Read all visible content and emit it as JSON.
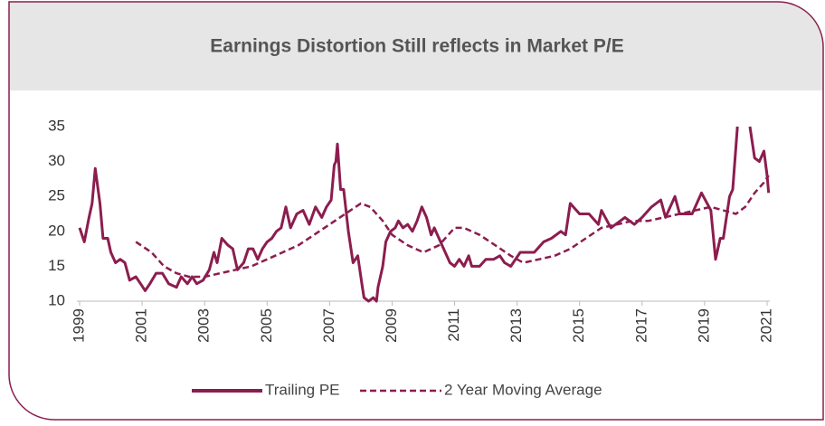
{
  "chart_data": {
    "type": "line",
    "title": "Earnings Distortion Still reflects in Market P/E",
    "xlim": [
      1999,
      2021
    ],
    "xticks": [
      1999,
      2001,
      2003,
      2005,
      2007,
      2009,
      2011,
      2013,
      2015,
      2017,
      2019,
      2021
    ],
    "ylim": [
      10,
      35
    ],
    "yticks": [
      10,
      15,
      20,
      25,
      30,
      35
    ],
    "grid": false,
    "legend": "bottom",
    "series": [
      {
        "name": "Trailing PE",
        "color": "#8c1d4f",
        "style": "solid",
        "x": [
          1999.0,
          1999.15,
          1999.3,
          1999.4,
          1999.5,
          1999.65,
          1999.75,
          1999.9,
          2000.0,
          2000.15,
          2000.3,
          2000.45,
          2000.6,
          2000.8,
          2000.95,
          2001.1,
          2001.25,
          2001.45,
          2001.65,
          2001.85,
          2002.1,
          2002.25,
          2002.45,
          2002.6,
          2002.75,
          2002.95,
          2003.15,
          2003.3,
          2003.4,
          2003.55,
          2003.75,
          2003.9,
          2004.05,
          2004.25,
          2004.4,
          2004.55,
          2004.7,
          2004.85,
          2005.0,
          2005.15,
          2005.3,
          2005.45,
          2005.6,
          2005.75,
          2005.95,
          2006.15,
          2006.35,
          2006.55,
          2006.75,
          2006.9,
          2007.05,
          2007.15,
          2007.2,
          2007.25,
          2007.35,
          2007.45,
          2007.6,
          2007.75,
          2007.9,
          2008.05,
          2008.1,
          2008.25,
          2008.4,
          2008.5,
          2008.55,
          2008.7,
          2008.8,
          2008.95,
          2009.1,
          2009.2,
          2009.35,
          2009.5,
          2009.65,
          2009.8,
          2009.95,
          2010.1,
          2010.25,
          2010.35,
          2010.55,
          2010.7,
          2010.85,
          2011.0,
          2011.15,
          2011.3,
          2011.45,
          2011.55,
          2011.8,
          2012.0,
          2012.25,
          2012.45,
          2012.6,
          2012.8,
          2013.1,
          2013.55,
          2013.85,
          2014.1,
          2014.4,
          2014.55,
          2014.7,
          2015.0,
          2015.3,
          2015.6,
          2015.7,
          2016.0,
          2016.45,
          2016.75,
          2017.0,
          2017.3,
          2017.6,
          2017.75,
          2018.05,
          2018.2,
          2018.6,
          2018.9,
          2019.2,
          2019.35,
          2019.5,
          2019.6,
          2019.8,
          2019.9,
          2020.05,
          2020.25,
          2020.45,
          2020.6,
          2020.75,
          2020.9,
          2021.0,
          2021.05
        ],
        "values": [
          20.5,
          18.5,
          22,
          24,
          29,
          24,
          19,
          19,
          17,
          15.5,
          16,
          15.5,
          13,
          13.5,
          12.5,
          11.5,
          12.5,
          14,
          14,
          12.5,
          12,
          13.5,
          12.5,
          13.5,
          12.5,
          13,
          14.5,
          17,
          15.5,
          19,
          18,
          17.5,
          14.5,
          15.5,
          17.5,
          17.5,
          16,
          17.5,
          18.5,
          19,
          20,
          20.5,
          23.5,
          20.5,
          22.5,
          23,
          21,
          23.5,
          22,
          23.5,
          24.5,
          29.5,
          30,
          32.5,
          26,
          26,
          20,
          15.5,
          16.5,
          12,
          10.5,
          10,
          10.5,
          10,
          12,
          15,
          18.5,
          20,
          20.5,
          21.5,
          20.5,
          21,
          20,
          21.5,
          23.5,
          22,
          19.5,
          20.5,
          18.5,
          17,
          15.5,
          15,
          16,
          15,
          16.5,
          15,
          15,
          16,
          16,
          16.5,
          15.5,
          15,
          17,
          17,
          18.5,
          19,
          20,
          19.5,
          24,
          22.5,
          22.5,
          21,
          23,
          20.5,
          22,
          21,
          22,
          23.5,
          24.5,
          22,
          25,
          22.5,
          22.5,
          25.5,
          23,
          16,
          19,
          19,
          25,
          26,
          35,
          null,
          35,
          30.5,
          30,
          31.5,
          28,
          25.5
        ]
      },
      {
        "name": "2 Year Moving Average",
        "color": "#8c1d4f",
        "style": "dashed",
        "x": [
          2000.8,
          2001.3,
          2001.7,
          2002.1,
          2002.5,
          2003.0,
          2003.5,
          2004.0,
          2004.5,
          2005.0,
          2005.5,
          2006.0,
          2006.5,
          2007.0,
          2007.5,
          2008.0,
          2008.3,
          2008.7,
          2009.0,
          2009.5,
          2010.0,
          2010.5,
          2011.0,
          2011.3,
          2011.8,
          2012.3,
          2012.8,
          2013.2,
          2013.7,
          2014.2,
          2014.7,
          2015.2,
          2015.7,
          2016.2,
          2016.7,
          2017.2,
          2017.7,
          2018.2,
          2018.7,
          2019.2,
          2019.6,
          2020.0,
          2020.3,
          2020.6,
          2020.9,
          2021.05
        ],
        "values": [
          18.5,
          17,
          15,
          14,
          13.5,
          13.5,
          14,
          14.5,
          15,
          16,
          17,
          18,
          19.5,
          21,
          22.5,
          24,
          23.5,
          21.5,
          19.5,
          18,
          17,
          18,
          20.5,
          20.5,
          19.5,
          18,
          16.5,
          15.5,
          16,
          16.5,
          17.5,
          19,
          20.5,
          21,
          21.5,
          21.5,
          22,
          22.5,
          23,
          23.5,
          23,
          22.5,
          23.5,
          25.5,
          27,
          28
        ]
      }
    ]
  }
}
